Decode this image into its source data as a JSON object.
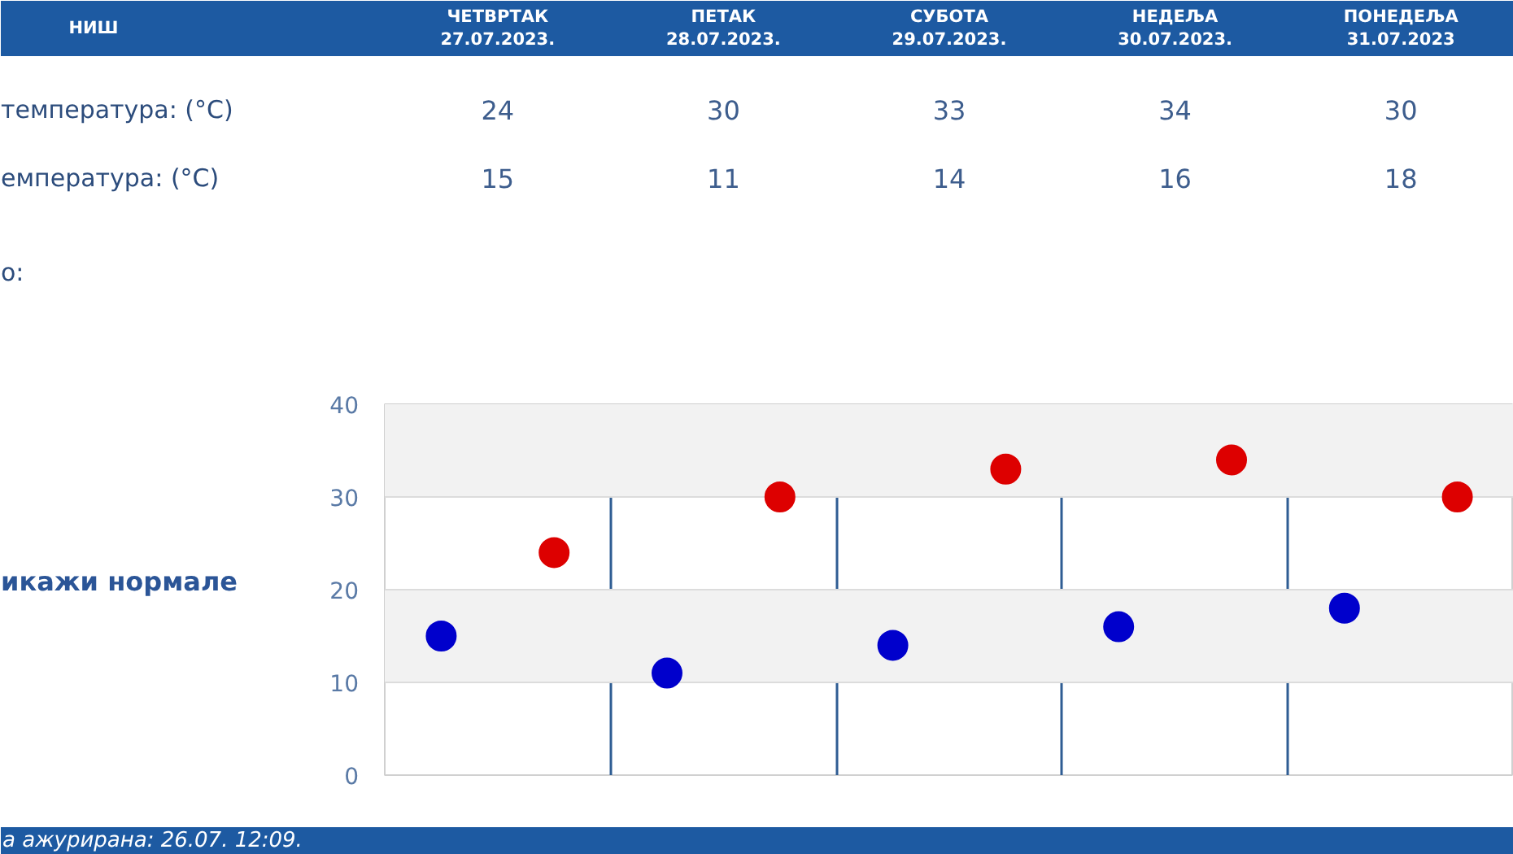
{
  "chart_data": {
    "type": "scatter",
    "title": "НИШ",
    "categories": [
      null,
      null,
      null,
      null,
      null
    ],
    "series": [
      {
        "color": "#dd0000",
        "values": [
          24,
          30,
          33,
          34,
          30
        ]
      },
      {
        "color": "#0000cc",
        "values": [
          15,
          11,
          14,
          16,
          18
        ]
      }
    ],
    "ylim": [
      0,
      40
    ],
    "yticks": [
      0,
      10,
      20,
      30,
      40
    ],
    "grid": true,
    "marker": "circle",
    "data_labels": true,
    "annotations": [
      "ЧЕТВРТАК\n27.07.2023.",
      "ПЕТАК\n28.07.2023.",
      "СУБОТА\n29.07.2023.",
      "НЕДЕЉА\n30.07.2023.",
      "ПОНЕДЕЉА\n31.07.2023",
      "температура: (°C)",
      "емпература: (°C)",
      "о:",
      "икажи нормале",
      "а ажурирана: 26.07. 12:09."
    ]
  }
}
